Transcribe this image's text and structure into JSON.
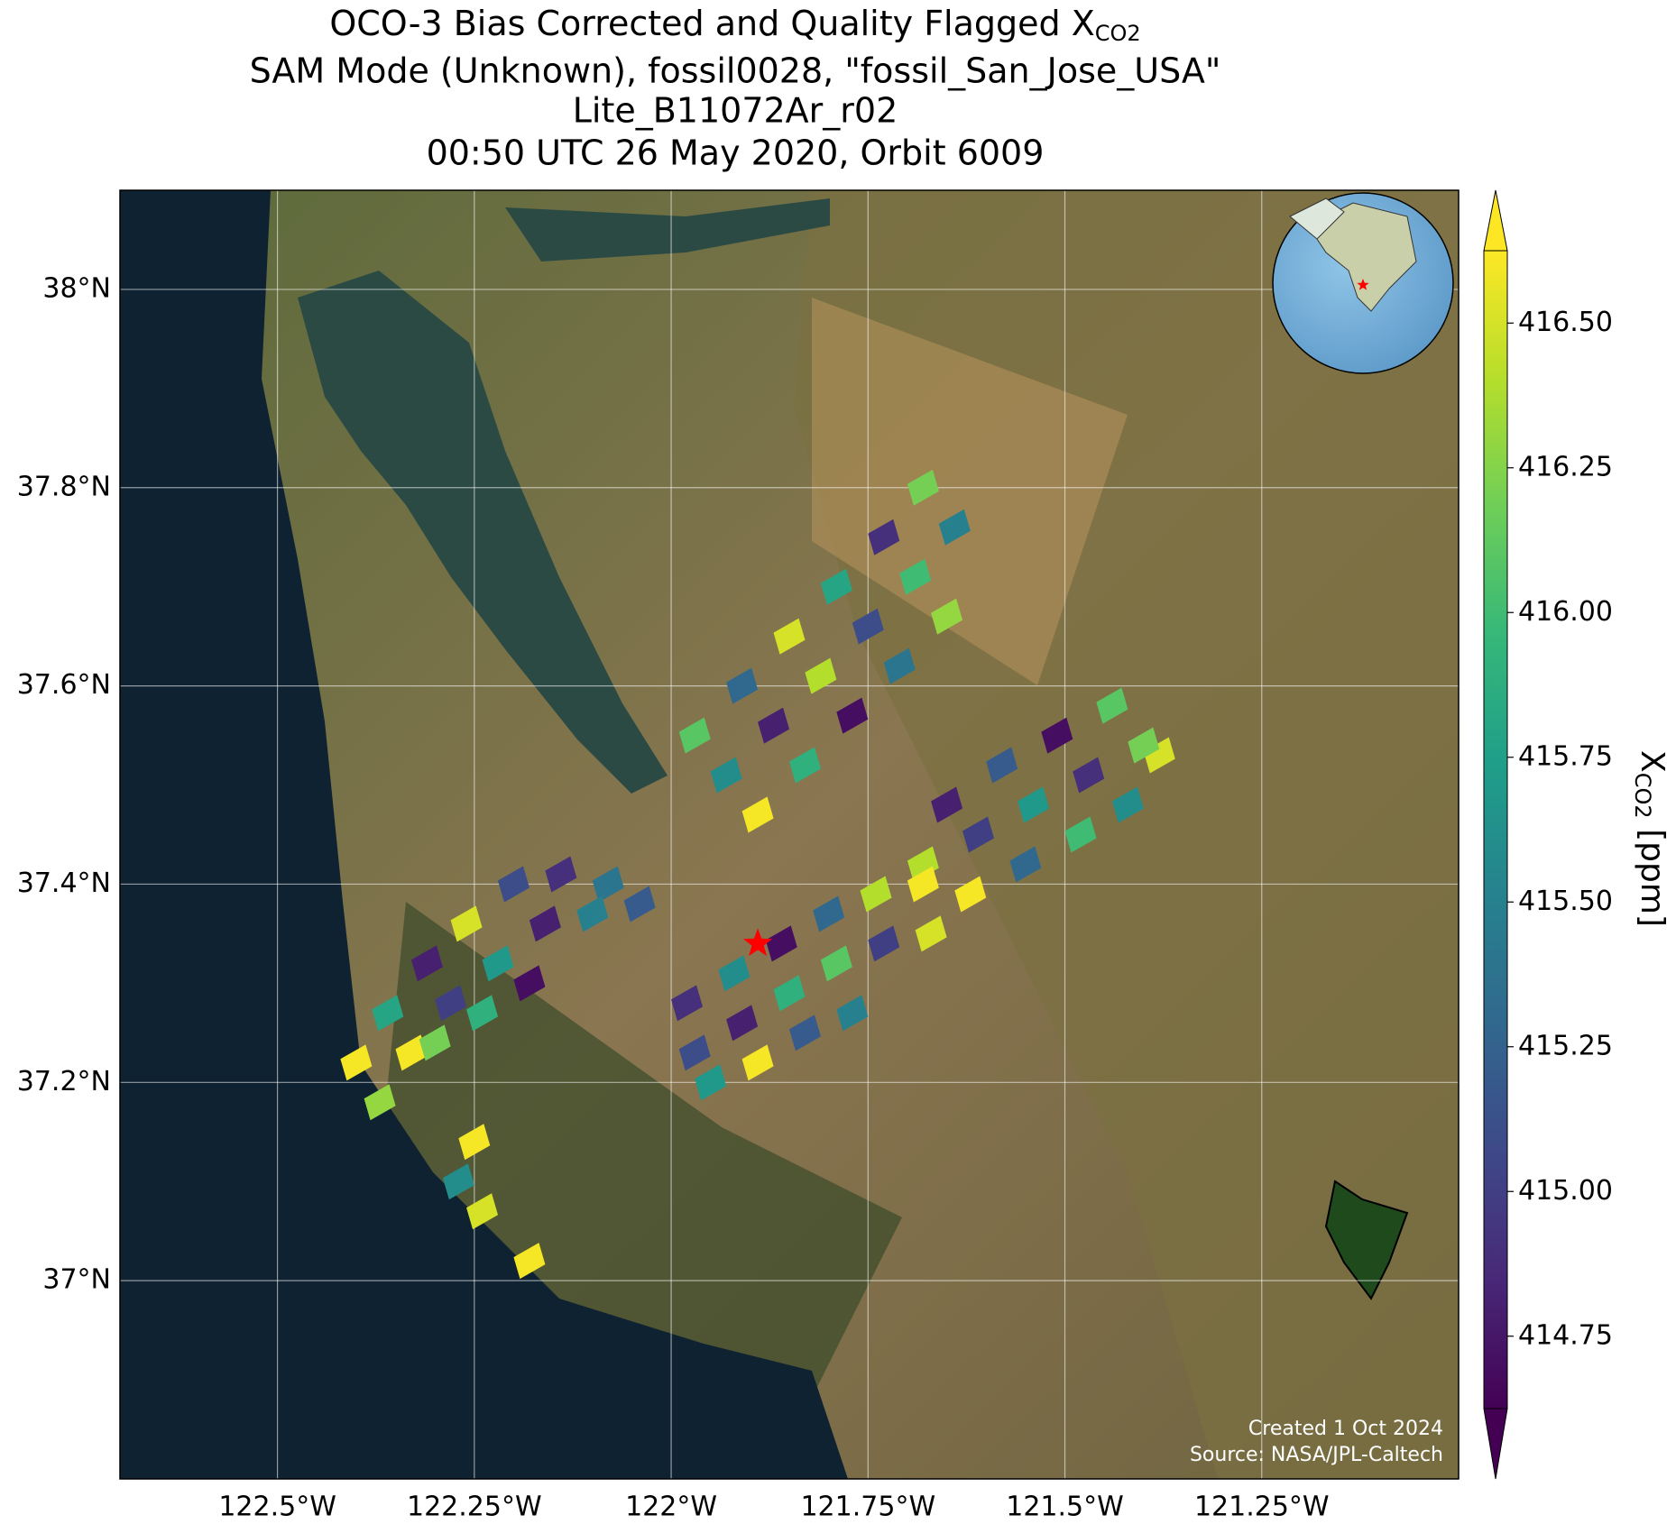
{
  "chart_data": {
    "type": "map",
    "title": [
      "OCO-3 Bias Corrected and Quality Flagged X",
      "SAM Mode (Unknown), fossil0028, \"fossil_San_Jose_USA\"",
      "Lite_B11072Ar_r02",
      "00:50 UTC 26 May 2020, Orbit 6009"
    ],
    "title_subscript": "CO2",
    "colorbar_label": "X",
    "colorbar_label_subscript": "CO2",
    "colorbar_label_unit": " [ppm]",
    "credits": [
      "Created 1 Oct 2024",
      "Source: NASA/JPL-Caltech"
    ],
    "colormap": "viridis",
    "xlim": [
      -122.7,
      -121.0
    ],
    "ylim": [
      36.8,
      38.1
    ],
    "xticks": [
      {
        "value": -122.5,
        "label": "122.5°W"
      },
      {
        "value": -122.25,
        "label": "122.25°W"
      },
      {
        "value": -122,
        "label": "122°W"
      },
      {
        "value": -121.75,
        "label": "121.75°W"
      },
      {
        "value": -121.5,
        "label": "121.5°W"
      },
      {
        "value": -121.25,
        "label": "121.25°W"
      }
    ],
    "yticks": [
      {
        "value": 37,
        "label": "37°N"
      },
      {
        "value": 37.2,
        "label": "37.2°N"
      },
      {
        "value": 37.4,
        "label": "37.4°N"
      },
      {
        "value": 37.6,
        "label": "37.6°N"
      },
      {
        "value": 37.8,
        "label": "37.8°N"
      },
      {
        "value": 38,
        "label": "38°N"
      }
    ],
    "clim": [
      414.625,
      416.625
    ],
    "cticks": [
      {
        "value": 414.75,
        "label": "414.75"
      },
      {
        "value": 415.0,
        "label": "415.00"
      },
      {
        "value": 415.25,
        "label": "415.25"
      },
      {
        "value": 415.5,
        "label": "415.50"
      },
      {
        "value": 415.75,
        "label": "415.75"
      },
      {
        "value": 416.0,
        "label": "416.00"
      },
      {
        "value": 416.25,
        "label": "416.25"
      },
      {
        "value": 416.5,
        "label": "416.50"
      }
    ],
    "grid": true,
    "target": {
      "lon": -121.89,
      "lat": 37.34,
      "color": "#ff0000"
    },
    "soundings": {
      "lon": [
        -121.97,
        -121.91,
        -121.85,
        -121.79,
        -121.73,
        -121.68,
        -121.93,
        -121.87,
        -121.81,
        -121.75,
        -121.69,
        -121.64,
        -121.89,
        -121.83,
        -121.77,
        -121.71,
        -121.65,
        -121.65,
        -121.58,
        -121.51,
        -121.44,
        -121.38,
        -121.68,
        -121.61,
        -121.54,
        -121.47,
        -121.4,
        -121.62,
        -121.55,
        -121.48,
        -121.42,
        -122.4,
        -122.36,
        -122.31,
        -122.26,
        -122.2,
        -122.14,
        -122.08,
        -122.37,
        -122.33,
        -122.28,
        -122.22,
        -122.16,
        -122.1,
        -122.04,
        -122.3,
        -122.24,
        -122.18,
        -121.98,
        -121.92,
        -121.86,
        -121.8,
        -121.74,
        -121.68,
        -121.97,
        -121.91,
        -121.85,
        -121.79,
        -121.73,
        -121.67,
        -121.95,
        -121.89,
        -121.83,
        -121.77,
        -122.25,
        -122.27,
        -122.24,
        -122.18
      ],
      "lat": [
        37.55,
        37.6,
        37.65,
        37.7,
        37.75,
        37.8,
        37.51,
        37.56,
        37.61,
        37.66,
        37.71,
        37.76,
        37.47,
        37.52,
        37.57,
        37.62,
        37.67,
        37.48,
        37.52,
        37.55,
        37.58,
        37.53,
        37.42,
        37.45,
        37.48,
        37.51,
        37.54,
        37.39,
        37.42,
        37.45,
        37.48,
        37.22,
        37.27,
        37.32,
        37.36,
        37.4,
        37.41,
        37.4,
        37.18,
        37.23,
        37.28,
        37.32,
        37.36,
        37.37,
        37.38,
        37.24,
        37.27,
        37.3,
        37.28,
        37.31,
        37.34,
        37.37,
        37.39,
        37.4,
        37.23,
        37.26,
        37.29,
        37.32,
        37.34,
        37.35,
        37.2,
        37.22,
        37.25,
        37.27,
        37.14,
        37.1,
        37.07,
        37.02
      ],
      "xco2": [
        416.1,
        415.3,
        416.5,
        415.8,
        414.9,
        416.2,
        415.6,
        414.8,
        416.4,
        415.1,
        416.0,
        415.5,
        416.6,
        415.9,
        414.7,
        415.4,
        416.3,
        414.8,
        415.2,
        414.7,
        416.1,
        416.5,
        416.4,
        415.0,
        415.7,
        414.9,
        416.2,
        416.6,
        415.3,
        416.0,
        415.6,
        416.6,
        415.8,
        414.8,
        416.5,
        415.1,
        414.9,
        415.4,
        416.3,
        416.6,
        415.0,
        415.7,
        414.8,
        415.5,
        415.2,
        416.2,
        415.9,
        414.7,
        414.9,
        415.6,
        414.7,
        415.3,
        416.4,
        416.6,
        415.1,
        414.8,
        415.9,
        416.1,
        415.0,
        416.5,
        415.7,
        416.6,
        415.2,
        415.5,
        416.6,
        415.6,
        416.5,
        416.6
      ]
    }
  }
}
